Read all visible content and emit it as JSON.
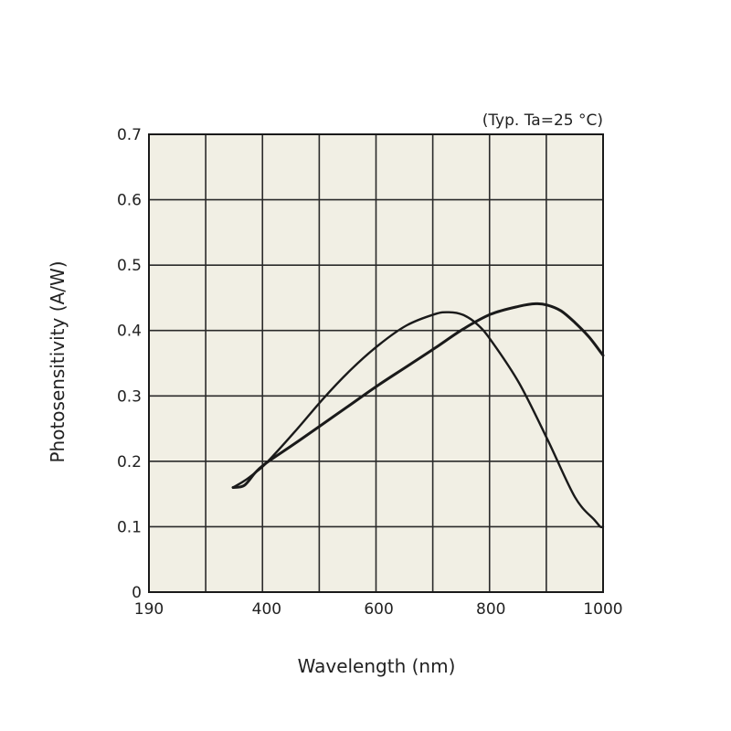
{
  "chart_data": {
    "type": "line",
    "title": "",
    "annotation": "(Typ. Ta=25 °C)",
    "xlabel": "Wavelength (nm)",
    "ylabel": "Photosensitivity  (A/W)",
    "x_tick_labels": [
      "190",
      "400",
      "600",
      "800",
      "1000"
    ],
    "y_tick_labels": [
      "0",
      "0.1",
      "0.2",
      "0.3",
      "0.4",
      "0.5",
      "0.6",
      "0.7"
    ],
    "xlim": [
      190,
      1000
    ],
    "ylim": [
      0,
      0.7
    ],
    "grid": true,
    "plot_background": "#f1efe4",
    "line_color": "#1a1a1a",
    "series": [
      {
        "x": [
          340,
          360,
          380,
          400,
          450,
          500,
          550,
          600,
          650,
          700,
          725,
          750,
          775,
          800,
          850,
          900,
          950,
          985,
          995,
          1000
        ],
        "y": [
          0.16,
          0.17,
          0.183,
          0.198,
          0.245,
          0.295,
          0.34,
          0.378,
          0.408,
          0.425,
          0.428,
          0.424,
          0.41,
          0.385,
          0.32,
          0.235,
          0.145,
          0.11,
          0.1,
          0.1
        ]
      },
      {
        "x": [
          340,
          360,
          380,
          400,
          450,
          500,
          550,
          600,
          650,
          700,
          750,
          800,
          850,
          880,
          900,
          925,
          950,
          975,
          1000
        ],
        "y": [
          0.16,
          0.163,
          0.183,
          0.198,
          0.227,
          0.257,
          0.287,
          0.317,
          0.345,
          0.373,
          0.402,
          0.425,
          0.437,
          0.441,
          0.439,
          0.43,
          0.412,
          0.39,
          0.362
        ]
      }
    ]
  }
}
